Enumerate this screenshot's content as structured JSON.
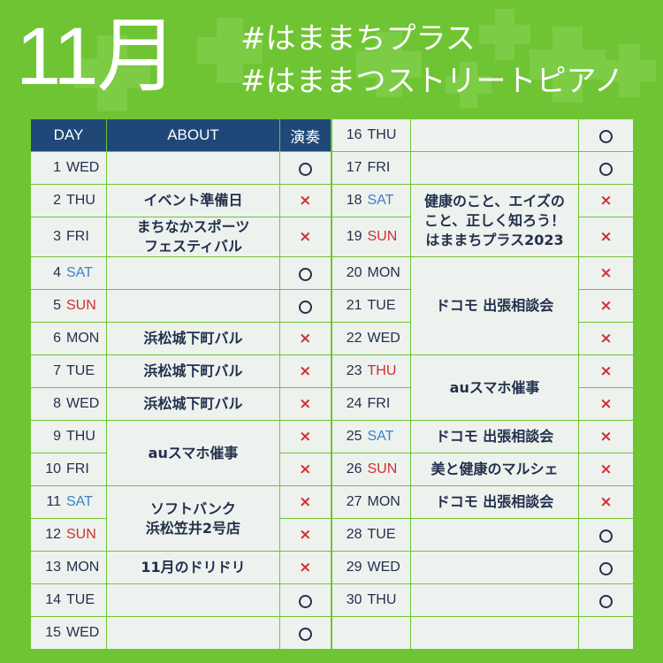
{
  "header": {
    "month": "11月",
    "hashtags": [
      "#はままちプラス",
      "#はままつストリートピアノ"
    ]
  },
  "table": {
    "columns": [
      "DAY",
      "ABOUT",
      "演奏"
    ],
    "rows": [
      {
        "d": "1",
        "w": "WED",
        "about": "",
        "mark": "○"
      },
      {
        "d": "2",
        "w": "THU",
        "about": "イベント準備日",
        "mark": "×"
      },
      {
        "d": "3",
        "w": "FRI",
        "about": "まちなかスポーツ\nフェスティバル",
        "mark": "×"
      },
      {
        "d": "4",
        "w": "SAT",
        "about": "",
        "mark": "○"
      },
      {
        "d": "5",
        "w": "SUN",
        "about": "",
        "mark": "○"
      },
      {
        "d": "6",
        "w": "MON",
        "about": "浜松城下町バル",
        "mark": "×"
      },
      {
        "d": "7",
        "w": "TUE",
        "about": "浜松城下町バル",
        "mark": "×"
      },
      {
        "d": "8",
        "w": "WED",
        "about": "浜松城下町バル",
        "mark": "×"
      },
      {
        "d": "9",
        "w": "THU",
        "about": "auスマホ催事",
        "mark": "×"
      },
      {
        "d": "10",
        "w": "FRI",
        "about": "",
        "mark": "×"
      },
      {
        "d": "11",
        "w": "SAT",
        "about": "ソフトバンク\n浜松笠井2号店",
        "mark": "×"
      },
      {
        "d": "12",
        "w": "SUN",
        "about": "",
        "mark": "×"
      },
      {
        "d": "13",
        "w": "MON",
        "about": "11月のドリドリ",
        "mark": "×"
      },
      {
        "d": "14",
        "w": "TUE",
        "about": "",
        "mark": "○"
      },
      {
        "d": "15",
        "w": "WED",
        "about": "",
        "mark": "○"
      },
      {
        "d": "16",
        "w": "THU",
        "about": "",
        "mark": "○"
      },
      {
        "d": "17",
        "w": "FRI",
        "about": "",
        "mark": "○"
      },
      {
        "d": "18",
        "w": "SAT",
        "about": "健康のこと、エイズの\nこと、正しく知ろう！\nはままちプラス2023",
        "mark": "×"
      },
      {
        "d": "19",
        "w": "SUN",
        "about": "",
        "mark": "×"
      },
      {
        "d": "20",
        "w": "MON",
        "about": "ドコモ 出張相談会",
        "mark": "×"
      },
      {
        "d": "21",
        "w": "TUE",
        "about": "",
        "mark": "×"
      },
      {
        "d": "22",
        "w": "WED",
        "about": "",
        "mark": "×"
      },
      {
        "d": "23",
        "w": "THU",
        "about": "auスマホ催事",
        "mark": "×"
      },
      {
        "d": "24",
        "w": "FRI",
        "about": "",
        "mark": "×"
      },
      {
        "d": "25",
        "w": "SAT",
        "about": "ドコモ 出張相談会",
        "mark": "×"
      },
      {
        "d": "26",
        "w": "SUN",
        "about": "美と健康のマルシェ",
        "mark": "×"
      },
      {
        "d": "27",
        "w": "MON",
        "about": "ドコモ 出張相談会",
        "mark": "×"
      },
      {
        "d": "28",
        "w": "TUE",
        "about": "",
        "mark": "○"
      },
      {
        "d": "29",
        "w": "WED",
        "about": "",
        "mark": "○"
      },
      {
        "d": "30",
        "w": "THU",
        "about": "",
        "mark": "○"
      }
    ]
  },
  "colors": {
    "background": "#6fc433",
    "header": "#1f4878",
    "cell": "#edf2ef",
    "saturday": "#3d7fc4",
    "sunday": "#d03030",
    "cross": "#d03030",
    "text": "#23304c"
  }
}
